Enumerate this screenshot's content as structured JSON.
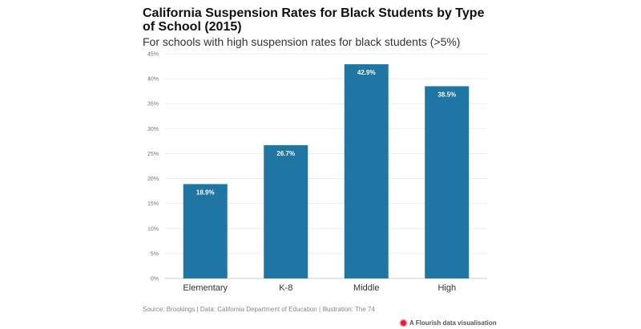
{
  "header": {
    "title": "California Suspension Rates for Black Students by Type of School (2015)",
    "subtitle": "For schools with high suspension rates for black students (>5%)"
  },
  "footer": {
    "source": "Source: Brookings | Data: California Department of Education | Illustration: The 74",
    "flourish": "A Flourish data visualisation"
  },
  "colors": {
    "bar": "#1f76a3",
    "grid": "#eeeeee"
  },
  "chart_data": {
    "type": "bar",
    "title": "California Suspension Rates for Black Students by Type of School (2015)",
    "subtitle": "For schools with high suspension rates for black students (>5%)",
    "categories": [
      "Elementary",
      "K-8",
      "Middle",
      "High"
    ],
    "values": [
      18.9,
      26.7,
      42.9,
      38.5
    ],
    "value_labels": [
      "18.9%",
      "26.7%",
      "42.9%",
      "38.5%"
    ],
    "ylim": [
      0,
      45
    ],
    "yticks": [
      "0%",
      "5%",
      "10%",
      "15%",
      "20%",
      "25%",
      "30%",
      "35%",
      "40%",
      "45%"
    ],
    "grid": true,
    "legend": "none"
  }
}
